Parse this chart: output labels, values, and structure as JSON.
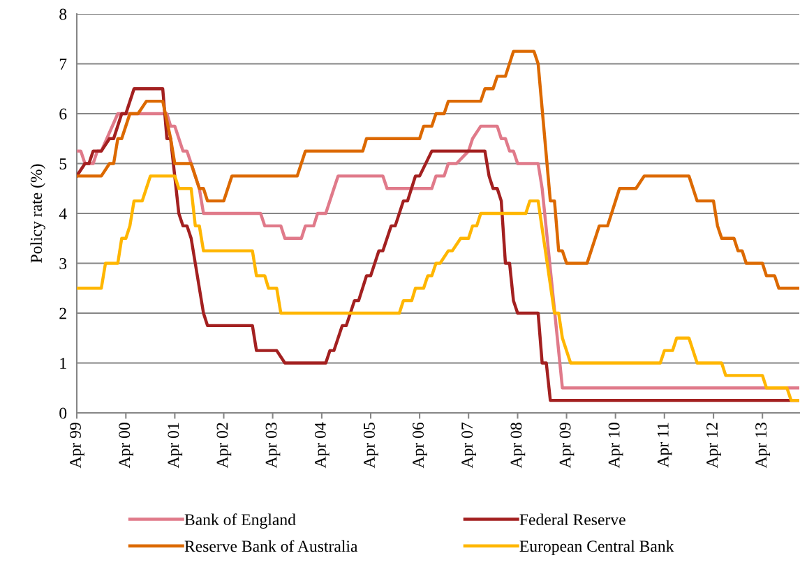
{
  "chart_data": {
    "type": "line",
    "ylabel": "Policy rate (%)",
    "xlim": [
      "1999-04",
      "2014-01"
    ],
    "xticks": [
      {
        "value": "1999-04",
        "label": "Apr 99"
      },
      {
        "value": "2000-04",
        "label": "Apr 00"
      },
      {
        "value": "2001-04",
        "label": "Apr 01"
      },
      {
        "value": "2002-04",
        "label": "Apr 02"
      },
      {
        "value": "2003-04",
        "label": "Apr 03"
      },
      {
        "value": "2004-04",
        "label": "Apr 04"
      },
      {
        "value": "2005-04",
        "label": "Apr 05"
      },
      {
        "value": "2006-04",
        "label": "Apr 06"
      },
      {
        "value": "2007-04",
        "label": "Apr 07"
      },
      {
        "value": "2008-04",
        "label": "Apr 08"
      },
      {
        "value": "2009-04",
        "label": "Apr 09"
      },
      {
        "value": "2010-04",
        "label": "Apr 10"
      },
      {
        "value": "2011-04",
        "label": "Apr 11"
      },
      {
        "value": "2012-04",
        "label": "Apr 12"
      },
      {
        "value": "2013-04",
        "label": "Apr 13"
      }
    ],
    "ylim": [
      0,
      8
    ],
    "yticks": [
      0,
      1,
      2,
      3,
      4,
      5,
      6,
      7,
      8
    ],
    "grid": "y",
    "legend": "bottom",
    "marker": "none",
    "line_style": "solid",
    "series": [
      {
        "name": "Bank of England",
        "color": "#e07a8a",
        "x": [
          "1999-04",
          "1999-05",
          "1999-06",
          "1999-08",
          "1999-09",
          "1999-10",
          "2000-02",
          "2001-02",
          "2001-03",
          "2001-04",
          "2001-06",
          "2001-07",
          "2001-08",
          "2001-10",
          "2001-11",
          "2003-01",
          "2003-02",
          "2003-06",
          "2003-07",
          "2003-11",
          "2003-12",
          "2004-02",
          "2004-03",
          "2004-05",
          "2004-07",
          "2004-08",
          "2005-07",
          "2005-08",
          "2006-07",
          "2006-08",
          "2006-10",
          "2006-11",
          "2007-01",
          "2007-04",
          "2007-05",
          "2007-07",
          "2007-11",
          "2007-12",
          "2008-01",
          "2008-02",
          "2008-03",
          "2008-04",
          "2008-09",
          "2008-10",
          "2009-03",
          "2014-01"
        ],
        "values": [
          5.25,
          5.25,
          5.0,
          5.0,
          5.25,
          5.25,
          6.0,
          6.0,
          5.75,
          5.75,
          5.25,
          5.25,
          5.0,
          4.5,
          4.0,
          4.0,
          3.75,
          3.75,
          3.5,
          3.5,
          3.75,
          3.75,
          4.0,
          4.0,
          4.5,
          4.75,
          4.75,
          4.5,
          4.5,
          4.75,
          4.75,
          5.0,
          5.0,
          5.25,
          5.5,
          5.75,
          5.75,
          5.5,
          5.5,
          5.25,
          5.25,
          5.0,
          5.0,
          4.5,
          0.5,
          0.5
        ]
      },
      {
        "name": "Federal Reserve",
        "color": "#a32020",
        "x": [
          "1999-04",
          "1999-06",
          "1999-07",
          "1999-08",
          "1999-10",
          "1999-12",
          "2000-01",
          "2000-03",
          "2000-04",
          "2000-06",
          "2001-01",
          "2001-02",
          "2001-03",
          "2001-05",
          "2001-06",
          "2001-07",
          "2001-08",
          "2001-11",
          "2001-12",
          "2002-11",
          "2002-12",
          "2003-05",
          "2003-07",
          "2004-05",
          "2004-06",
          "2004-07",
          "2004-09",
          "2004-10",
          "2004-12",
          "2005-01",
          "2005-03",
          "2005-04",
          "2005-06",
          "2005-07",
          "2005-09",
          "2005-10",
          "2005-12",
          "2006-01",
          "2006-03",
          "2006-04",
          "2006-07",
          "2007-08",
          "2007-09",
          "2007-10",
          "2007-11",
          "2007-12",
          "2008-01",
          "2008-02",
          "2008-03",
          "2008-04",
          "2008-09",
          "2008-10",
          "2008-11",
          "2008-12",
          "2014-01"
        ],
        "values": [
          4.75,
          5.0,
          5.0,
          5.25,
          5.25,
          5.5,
          5.5,
          6.0,
          6.0,
          6.5,
          6.5,
          5.5,
          5.5,
          4.0,
          3.75,
          3.75,
          3.5,
          2.0,
          1.75,
          1.75,
          1.25,
          1.25,
          1.0,
          1.0,
          1.25,
          1.25,
          1.75,
          1.75,
          2.25,
          2.25,
          2.75,
          2.75,
          3.25,
          3.25,
          3.75,
          3.75,
          4.25,
          4.25,
          4.75,
          4.75,
          5.25,
          5.25,
          4.75,
          4.5,
          4.5,
          4.25,
          3.0,
          3.0,
          2.25,
          2.0,
          2.0,
          1.0,
          1.0,
          0.25,
          0.25
        ]
      },
      {
        "name": "Reserve Bank of Australia",
        "color": "#dc6900",
        "x": [
          "1999-04",
          "1999-10",
          "1999-12",
          "2000-01",
          "2000-02",
          "2000-03",
          "2000-05",
          "2000-07",
          "2000-09",
          "2001-01",
          "2001-03",
          "2001-04",
          "2001-08",
          "2001-10",
          "2001-11",
          "2001-12",
          "2002-04",
          "2002-06",
          "2003-10",
          "2003-12",
          "2005-02",
          "2005-03",
          "2006-04",
          "2006-05",
          "2006-07",
          "2006-08",
          "2006-10",
          "2006-11",
          "2007-07",
          "2007-08",
          "2007-10",
          "2007-11",
          "2008-01",
          "2008-03",
          "2008-08",
          "2008-09",
          "2008-12",
          "2009-01",
          "2009-02",
          "2009-03",
          "2009-04",
          "2009-09",
          "2009-12",
          "2010-02",
          "2010-05",
          "2010-09",
          "2010-11",
          "2011-10",
          "2011-12",
          "2012-04",
          "2012-05",
          "2012-06",
          "2012-09",
          "2012-10",
          "2012-11",
          "2012-12",
          "2013-04",
          "2013-05",
          "2013-07",
          "2013-08",
          "2014-01"
        ],
        "values": [
          4.75,
          4.75,
          5.0,
          5.0,
          5.5,
          5.5,
          6.0,
          6.0,
          6.25,
          6.25,
          5.5,
          5.0,
          5.0,
          4.5,
          4.5,
          4.25,
          4.25,
          4.75,
          4.75,
          5.25,
          5.25,
          5.5,
          5.5,
          5.75,
          5.75,
          6.0,
          6.0,
          6.25,
          6.25,
          6.5,
          6.5,
          6.75,
          6.75,
          7.25,
          7.25,
          7.0,
          4.25,
          4.25,
          3.25,
          3.25,
          3.0,
          3.0,
          3.75,
          3.75,
          4.5,
          4.5,
          4.75,
          4.75,
          4.25,
          4.25,
          3.75,
          3.5,
          3.5,
          3.25,
          3.25,
          3.0,
          3.0,
          2.75,
          2.75,
          2.5,
          2.5
        ]
      },
      {
        "name": "European Central Bank",
        "color": "#ffb600",
        "x": [
          "1999-04",
          "1999-10",
          "1999-11",
          "2000-02",
          "2000-03",
          "2000-04",
          "2000-05",
          "2000-06",
          "2000-08",
          "2000-10",
          "2001-04",
          "2001-05",
          "2001-08",
          "2001-09",
          "2001-10",
          "2001-11",
          "2002-11",
          "2002-12",
          "2003-02",
          "2003-03",
          "2003-05",
          "2003-06",
          "2005-11",
          "2005-12",
          "2006-02",
          "2006-03",
          "2006-05",
          "2006-06",
          "2006-07",
          "2006-08",
          "2006-09",
          "2006-11",
          "2006-12",
          "2007-02",
          "2007-04",
          "2007-05",
          "2007-06",
          "2007-07",
          "2008-06",
          "2008-07",
          "2008-09",
          "2009-01",
          "2009-02",
          "2009-03",
          "2009-05",
          "2011-03",
          "2011-04",
          "2011-06",
          "2011-07",
          "2011-10",
          "2011-12",
          "2012-06",
          "2012-07",
          "2013-04",
          "2013-05",
          "2013-10",
          "2013-11",
          "2014-01"
        ],
        "values": [
          2.5,
          2.5,
          3.0,
          3.0,
          3.5,
          3.5,
          3.75,
          4.25,
          4.25,
          4.75,
          4.75,
          4.5,
          4.5,
          3.75,
          3.75,
          3.25,
          3.25,
          2.75,
          2.75,
          2.5,
          2.5,
          2.0,
          2.0,
          2.25,
          2.25,
          2.5,
          2.5,
          2.75,
          2.75,
          3.0,
          3.0,
          3.25,
          3.25,
          3.5,
          3.5,
          3.75,
          3.75,
          4.0,
          4.0,
          4.25,
          4.25,
          2.0,
          2.0,
          1.5,
          1.0,
          1.0,
          1.25,
          1.25,
          1.5,
          1.5,
          1.0,
          1.0,
          0.75,
          0.75,
          0.5,
          0.5,
          0.25,
          0.25
        ]
      }
    ]
  }
}
